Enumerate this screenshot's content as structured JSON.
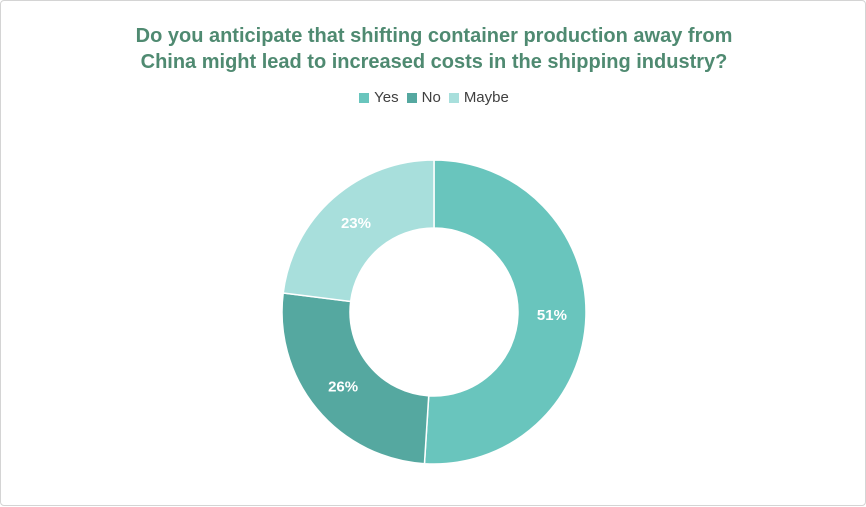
{
  "chart_data": {
    "type": "pie",
    "donut": true,
    "title_lines": [
      "Do you anticipate that shifting container production away from",
      "China might lead to increased costs in the shipping industry?"
    ],
    "legend_position": "top",
    "slices": [
      {
        "name": "Yes",
        "value": 51,
        "label": "51%",
        "color": "#69c5bd"
      },
      {
        "name": "No",
        "value": 26,
        "label": "26%",
        "color": "#55a8a0"
      },
      {
        "name": "Maybe",
        "value": 23,
        "label": "23%",
        "color": "#a8dfdc"
      }
    ]
  }
}
